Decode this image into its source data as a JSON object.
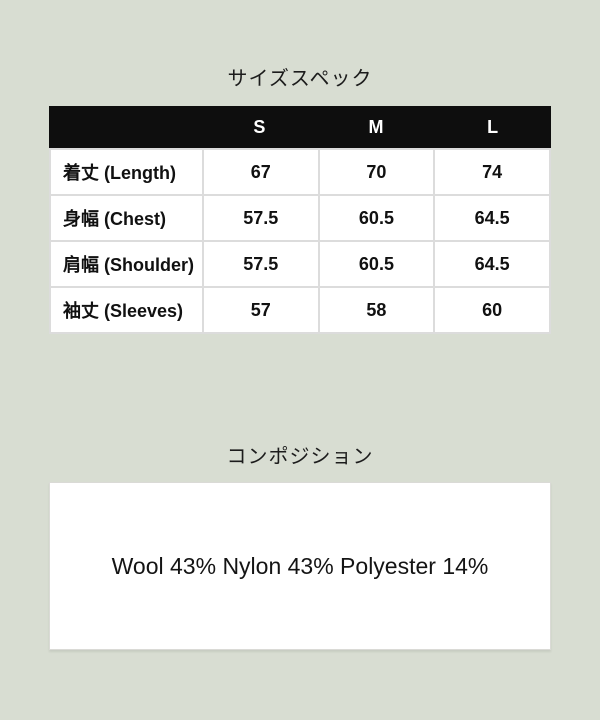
{
  "page": {
    "background_color": "#d8ddd2"
  },
  "size_spec": {
    "title": "サイズスペック",
    "table": {
      "header_bg_color": "#0e0e0e",
      "columns": [
        "",
        "S",
        "M",
        "L"
      ],
      "rows": [
        {
          "label": "着丈 (Length)",
          "values": [
            "67",
            "70",
            "74"
          ]
        },
        {
          "label": "身幅 (Chest)",
          "values": [
            "57.5",
            "60.5",
            "64.5"
          ]
        },
        {
          "label": "肩幅 (Shoulder)",
          "values": [
            "57.5",
            "60.5",
            "64.5"
          ]
        },
        {
          "label": "袖丈 (Sleeves)",
          "values": [
            "57",
            "58",
            "60"
          ]
        }
      ]
    }
  },
  "composition": {
    "title": "コンポジション",
    "text": "Wool 43% Nylon 43% Polyester 14%"
  }
}
